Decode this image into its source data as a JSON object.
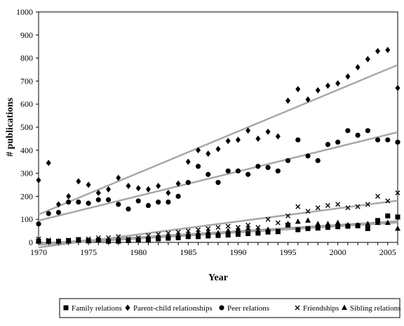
{
  "chart_data": {
    "type": "scatter",
    "xlabel": "Year",
    "ylabel": "# publications",
    "xlim": [
      1970,
      2006
    ],
    "ylim": [
      0,
      1000
    ],
    "x_ticks": [
      "1970",
      "1975",
      "1980",
      "1985",
      "1990",
      "1995",
      "2000",
      "2005"
    ],
    "y_ticks": [
      "0",
      "100",
      "200",
      "300",
      "400",
      "500",
      "600",
      "700",
      "800",
      "900",
      "1000"
    ],
    "grid": false,
    "legend_position": "bottom",
    "trendlines": true,
    "trendline_color": "#a6a6a6",
    "x": [
      1970,
      1971,
      1972,
      1973,
      1974,
      1975,
      1976,
      1977,
      1978,
      1979,
      1980,
      1981,
      1982,
      1983,
      1984,
      1985,
      1986,
      1987,
      1988,
      1989,
      1990,
      1991,
      1992,
      1993,
      1994,
      1995,
      1996,
      1997,
      1998,
      1999,
      2000,
      2001,
      2002,
      2003,
      2004,
      2005,
      2006
    ],
    "series": [
      {
        "name": "Family relations",
        "marker": "square",
        "values": [
          5,
          5,
          5,
          8,
          12,
          8,
          10,
          5,
          5,
          8,
          10,
          12,
          15,
          18,
          20,
          25,
          25,
          28,
          30,
          32,
          35,
          38,
          40,
          45,
          48,
          75,
          55,
          60,
          62,
          65,
          68,
          70,
          72,
          60,
          95,
          115,
          110
        ]
      },
      {
        "name": "Parent-child relationships",
        "marker": "diamond",
        "values": [
          270,
          345,
          165,
          200,
          265,
          250,
          215,
          230,
          280,
          245,
          235,
          230,
          245,
          215,
          255,
          350,
          400,
          385,
          405,
          440,
          445,
          485,
          450,
          480,
          460,
          615,
          665,
          620,
          660,
          680,
          690,
          720,
          760,
          795,
          830,
          835,
          670
        ]
      },
      {
        "name": "Peer relations",
        "marker": "circle",
        "values": [
          80,
          125,
          130,
          175,
          175,
          170,
          185,
          185,
          165,
          145,
          180,
          160,
          175,
          175,
          200,
          260,
          330,
          295,
          260,
          310,
          310,
          295,
          330,
          325,
          310,
          355,
          445,
          375,
          355,
          425,
          435,
          485,
          465,
          485,
          445,
          445,
          435
        ]
      },
      {
        "name": "Friendships",
        "marker": "cross",
        "values": [
          15,
          10,
          5,
          10,
          10,
          15,
          20,
          20,
          25,
          15,
          20,
          30,
          35,
          40,
          45,
          50,
          55,
          60,
          65,
          70,
          65,
          75,
          65,
          100,
          85,
          115,
          155,
          135,
          150,
          160,
          165,
          150,
          155,
          165,
          200,
          180,
          215
        ]
      },
      {
        "name": "Sibling relations",
        "marker": "triangle",
        "values": [
          5,
          5,
          5,
          5,
          8,
          5,
          8,
          8,
          10,
          10,
          15,
          15,
          20,
          25,
          30,
          35,
          40,
          45,
          40,
          50,
          55,
          60,
          50,
          55,
          45,
          80,
          90,
          95,
          80,
          80,
          85,
          75,
          75,
          80,
          85,
          85,
          60
        ]
      }
    ]
  }
}
